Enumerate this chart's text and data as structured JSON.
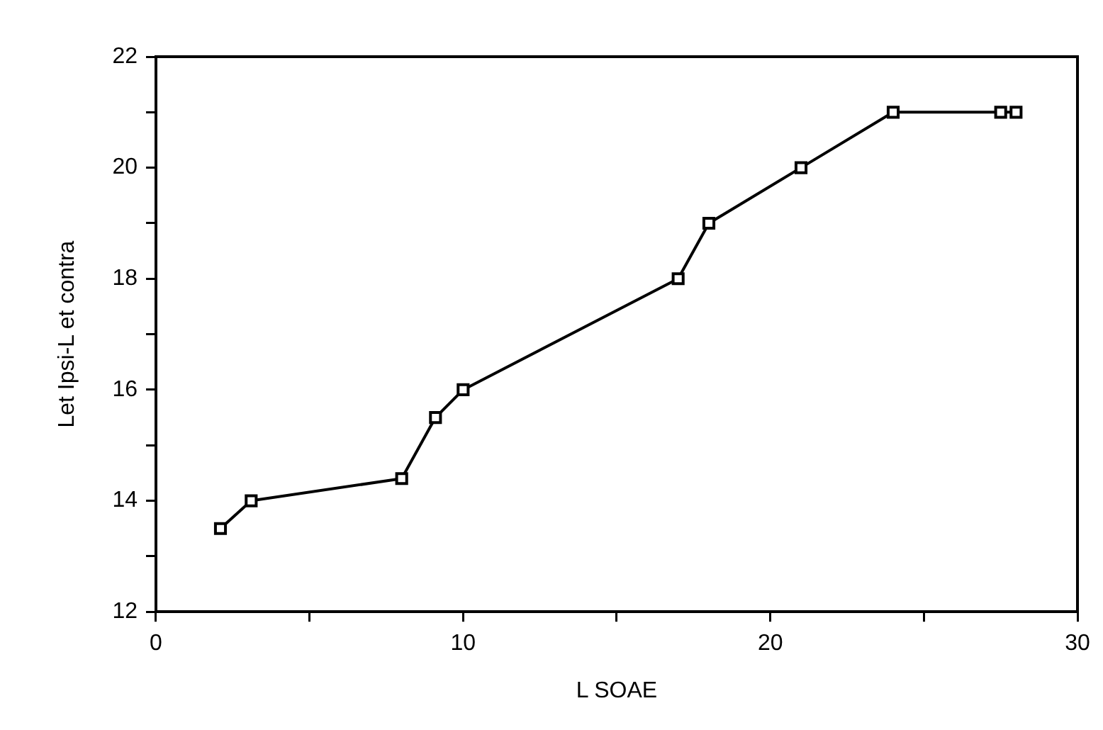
{
  "chart_data": {
    "type": "line",
    "xlabel": "L SOAE",
    "ylabel": "Let Ipsi-L et contra",
    "x": [
      2.1,
      3.1,
      8,
      9.1,
      10,
      17,
      18,
      21,
      24,
      27.5,
      28
    ],
    "series": [
      {
        "color": "#000000",
        "values": [
          13.5,
          14,
          14.4,
          15.5,
          16,
          18,
          19,
          20,
          21,
          21,
          21
        ]
      }
    ],
    "xlim": [
      0,
      30
    ],
    "xticks": [
      0,
      {
        "value": 5,
        "label": null
      },
      10,
      {
        "value": 15,
        "label": null
      },
      20,
      {
        "value": 25,
        "label": null
      },
      30
    ],
    "ylim": [
      12,
      22
    ],
    "yticks": [
      12,
      {
        "value": 13,
        "label": null
      },
      14,
      {
        "value": 15,
        "label": null
      },
      16,
      {
        "value": 17,
        "label": null
      },
      18,
      {
        "value": 19,
        "label": null
      },
      20,
      {
        "value": 21,
        "label": null
      },
      22
    ],
    "grid": false,
    "legend": false,
    "marker": "square",
    "line_style": "solid"
  }
}
